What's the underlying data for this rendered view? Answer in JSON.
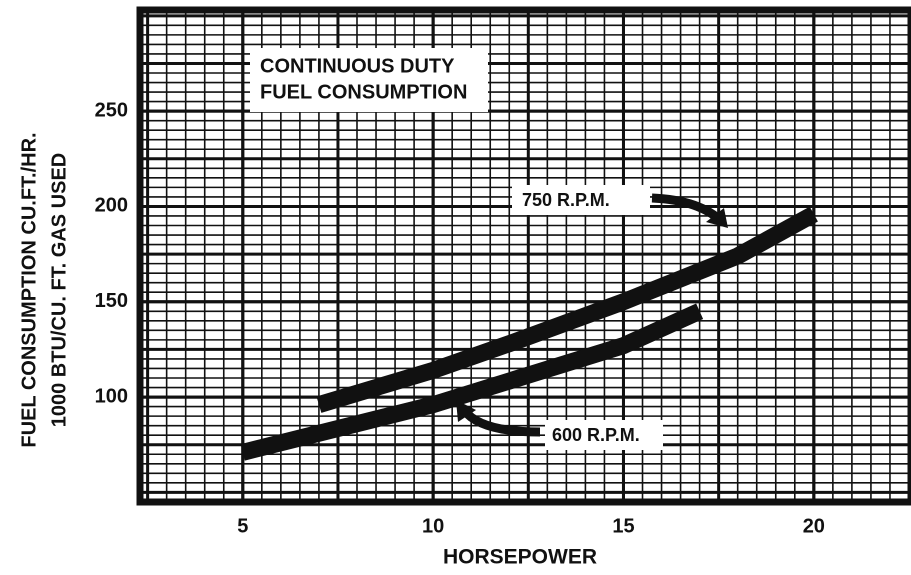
{
  "chart_data": {
    "type": "line",
    "title": [
      "CONTINUOUS DUTY",
      "FUEL CONSUMPTION"
    ],
    "y_label": [
      "FUEL CONSUMPTION CU.FT./HR.",
      "1000 BTU/CU. FT. GAS USED"
    ],
    "x_label": "HORSEPOWER",
    "xlim": [
      2.3,
      22.5
    ],
    "ylim": [
      46,
      302
    ],
    "xticks": [
      5,
      10,
      15,
      20
    ],
    "yticks": [
      100,
      150,
      200,
      250
    ],
    "grid": true,
    "series": [
      {
        "name": "750 R.P.M.",
        "color": "#111111",
        "x": [
          7,
          10,
          12,
          15,
          18,
          20
        ],
        "values": [
          96,
          114,
          128,
          150,
          174,
          196
        ]
      },
      {
        "name": "600 R.P.M.",
        "color": "#111111",
        "x": [
          5,
          10,
          15,
          17
        ],
        "values": [
          71,
          96,
          127,
          145
        ]
      }
    ]
  }
}
